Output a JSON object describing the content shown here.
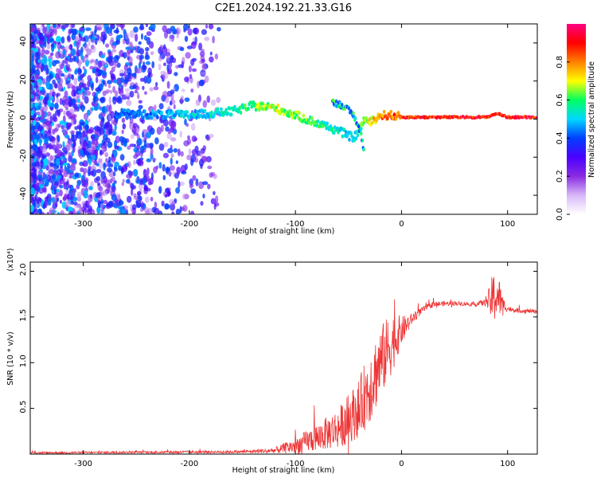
{
  "title": "C2E1.2024.192.21.33.G16",
  "chart_data": [
    {
      "type": "heatmap",
      "xlabel": "Height of straight line (km)",
      "ylabel": "Frequency (Hz)",
      "xlim": [
        -350,
        128
      ],
      "ylim": [
        -50,
        50
      ],
      "xticks": [
        -300,
        -200,
        -100,
        0,
        100
      ],
      "yticks": [
        -40,
        -20,
        0,
        20,
        40
      ],
      "grid": false,
      "colorbar": {
        "label": "Normalized spectral amplitude",
        "range": [
          0.0,
          1.0
        ],
        "ticks": [
          "0.0",
          "0.2",
          "0.4",
          "0.6",
          "0.8"
        ],
        "colormap": [
          "#ffffff",
          "#d8b8f8",
          "#8a2be2",
          "#4b00ff",
          "#0040ff",
          "#00d8ff",
          "#00ff60",
          "#ffff00",
          "#ff8000",
          "#ff0000",
          "#ff0080"
        ]
      },
      "ridge": {
        "x": [
          -270,
          -200,
          -160,
          -140,
          -120,
          -100,
          -80,
          -60,
          -45,
          -40,
          -35,
          -30,
          -20,
          -10,
          0,
          40,
          80,
          90,
          100,
          128
        ],
        "y": [
          3,
          2,
          4,
          7,
          6,
          2,
          -2,
          -6,
          -10,
          -6,
          0,
          -2,
          2,
          2,
          1,
          1,
          1,
          3,
          1,
          1
        ],
        "amplitude": [
          0.45,
          0.55,
          0.6,
          0.7,
          0.75,
          0.7,
          0.65,
          0.6,
          0.55,
          0.65,
          0.7,
          0.8,
          0.9,
          0.9,
          0.95,
          1.0,
          1.0,
          0.95,
          1.0,
          1.0
        ]
      },
      "secondary_branch": {
        "x": [
          -65,
          -55,
          -45,
          -38,
          -35
        ],
        "y": [
          9,
          7,
          2,
          -8,
          -18
        ]
      }
    },
    {
      "type": "line",
      "xlabel": "Height of straight line (km)",
      "ylabel": "SNR (10 * v/v)",
      "y_multiplier": "(x10⁴)",
      "xlim": [
        -350,
        128
      ],
      "ylim": [
        0,
        21000
      ],
      "xticks": [
        -300,
        -200,
        -100,
        0,
        100
      ],
      "yticks": [
        "0.5",
        "1.0",
        "1.5",
        "2.0"
      ],
      "grid": false,
      "line_color": "#ee3333",
      "series": [
        {
          "x": [
            -350,
            -250,
            -150,
            -120,
            -100,
            -80,
            -60,
            -40,
            -30,
            -20,
            -10,
            0,
            10,
            20,
            30,
            50,
            70,
            80,
            85,
            90,
            95,
            100,
            110,
            128
          ],
          "y": [
            150,
            200,
            250,
            400,
            900,
            1800,
            2800,
            5000,
            7500,
            10000,
            12000,
            13500,
            14800,
            15800,
            16400,
            16500,
            16400,
            16600,
            16900,
            17500,
            16500,
            15900,
            15700,
            15600
          ],
          "noise_amplitude": [
            100,
            120,
            150,
            300,
            900,
            1500,
            2200,
            3200,
            4200,
            4000,
            3500,
            1600,
            600,
            350,
            300,
            250,
            250,
            400,
            2500,
            3200,
            900,
            300,
            250,
            200
          ]
        }
      ]
    }
  ]
}
